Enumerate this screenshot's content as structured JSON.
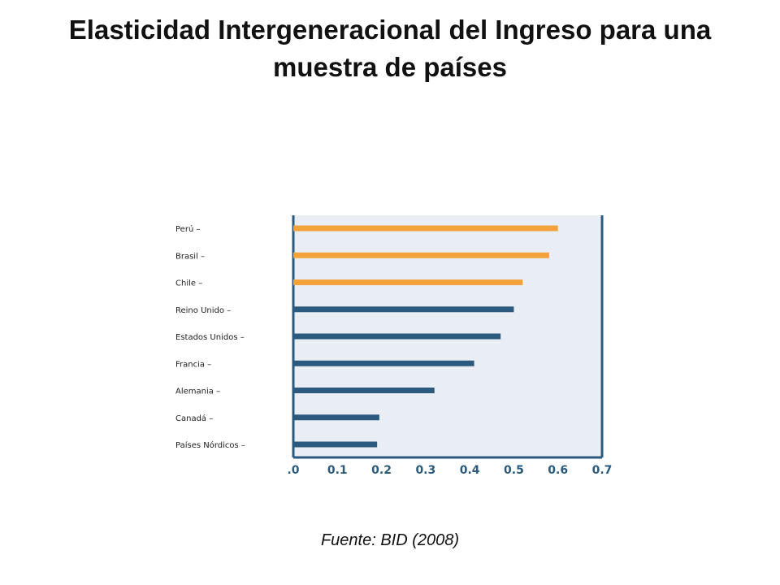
{
  "title": "Elasticidad Intergeneracional del Ingreso para una muestra de países",
  "source": "Fuente: BID (2008)",
  "colors": {
    "highlight": "#f4a23c",
    "default": "#2b5a7e",
    "plot_bg": "#e8eef4",
    "axis": "#2b5a7e"
  },
  "chart_data": {
    "type": "bar",
    "orientation": "horizontal",
    "title": "",
    "xlabel": "",
    "ylabel": "",
    "xlim": [
      0,
      0.7
    ],
    "xticks": [
      0,
      0.1,
      0.2,
      0.3,
      0.4,
      0.5,
      0.6,
      0.7
    ],
    "xtick_labels": [
      ".0",
      "0.1",
      "0.2",
      "0.3",
      "0.4",
      "0.5",
      "0.6",
      "0.7"
    ],
    "categories": [
      "Perú –",
      "Brasil –",
      "Chile –",
      "Reino Unido –",
      "Estados  Unidos –",
      "Francia –",
      "Alemania –",
      "Canadá –",
      "Países Nórdicos –"
    ],
    "values": [
      0.6,
      0.58,
      0.52,
      0.5,
      0.47,
      0.41,
      0.32,
      0.195,
      0.19
    ],
    "highlighted": [
      true,
      true,
      true,
      false,
      false,
      false,
      false,
      false,
      false
    ],
    "grid": false
  }
}
